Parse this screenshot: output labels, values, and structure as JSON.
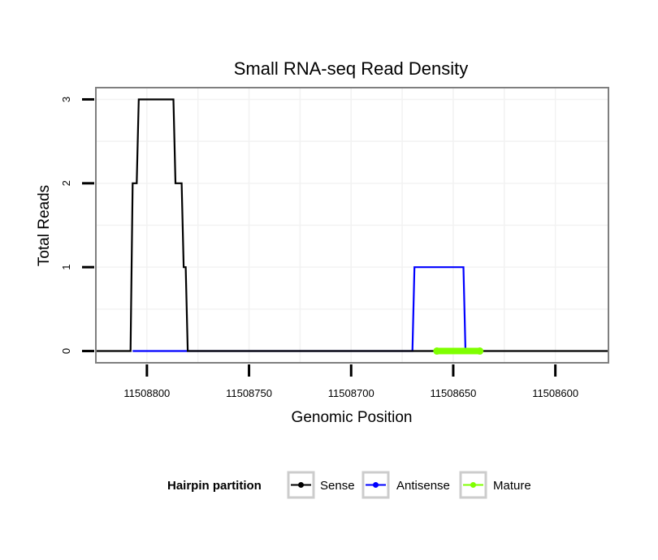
{
  "chart_data": {
    "type": "line",
    "title": "Small RNA-seq Read Density",
    "xlabel": "Genomic Position",
    "ylabel": "Total Reads",
    "xlim": [
      11508825,
      11508574
    ],
    "x_reversed": true,
    "ylim": [
      -0.14,
      3.14
    ],
    "xticks": [
      11508800,
      11508750,
      11508700,
      11508650,
      11508600
    ],
    "xtick_labels": [
      "11508800",
      "11508750",
      "11508700",
      "11508650",
      "11508600"
    ],
    "yticks": [
      0,
      1,
      2,
      3
    ],
    "ytick_labels": [
      "0",
      "1",
      "2",
      "3"
    ],
    "grid": true,
    "legend": {
      "title": "Hairpin partition",
      "position": "bottom",
      "entries": [
        {
          "name": "Sense",
          "color": "#000000"
        },
        {
          "name": "Antisense",
          "color": "#0000ff"
        },
        {
          "name": "Mature",
          "color": "#7fff00"
        }
      ]
    },
    "series": [
      {
        "name": "Antisense",
        "color": "#0000ff",
        "x": [
          11508807,
          11508780,
          11508670,
          11508669,
          11508645,
          11508644
        ],
        "y": [
          0,
          0,
          0,
          1,
          1,
          0
        ]
      },
      {
        "name": "Sense",
        "color": "#000000",
        "x": [
          11508825,
          11508808,
          11508807,
          11508805,
          11508804,
          11508787,
          11508786,
          11508783,
          11508782,
          11508781,
          11508780,
          11508574
        ],
        "y": [
          0,
          0,
          2,
          2,
          3,
          3,
          2,
          2,
          1,
          1,
          0,
          0
        ]
      },
      {
        "name": "Mature",
        "color": "#7fff00",
        "x": [
          11508658,
          11508637
        ],
        "y": [
          0,
          0
        ]
      }
    ]
  }
}
